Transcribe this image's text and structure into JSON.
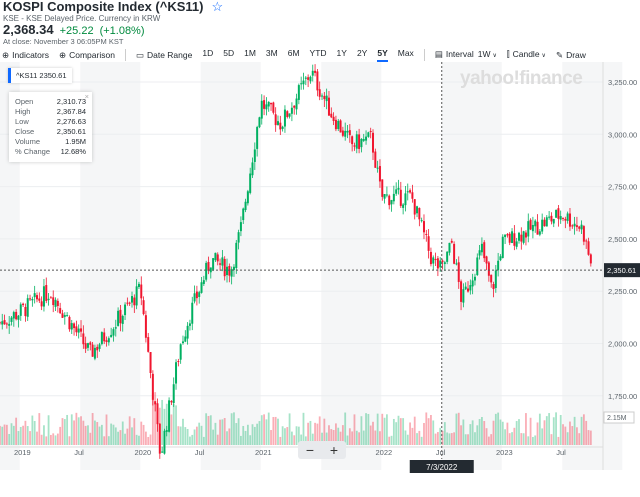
{
  "header": {
    "title": "KOSPI Composite Index (^KS11)",
    "star_icon": "star-icon",
    "subtitle": "KSE - KSE Delayed Price. Currency in KRW",
    "price": "2,368.34",
    "change": "+25.22",
    "change_pct": "(+1.08%)",
    "close_time": "At close: November 3 06:05PM KST"
  },
  "toolbar": {
    "indicators": "Indicators",
    "comparison": "Comparison",
    "date_range": "Date Range",
    "ranges": [
      "1D",
      "5D",
      "1M",
      "3M",
      "6M",
      "YTD",
      "1Y",
      "2Y",
      "5Y",
      "Max"
    ],
    "selected_range": "5Y",
    "interval_label": "Interval",
    "interval": "1W",
    "chart_type": "Candle",
    "draw": "Draw"
  },
  "legend": {
    "tag": "^KS11  2350.61"
  },
  "tooltip": {
    "rows": [
      [
        "Open",
        "2,310.73"
      ],
      [
        "High",
        "2,367.84"
      ],
      [
        "Low",
        "2,276.63"
      ],
      [
        "Close",
        "2,350.61"
      ],
      [
        "Volume",
        "1.95M"
      ],
      [
        "% Change",
        "12.68%"
      ]
    ]
  },
  "watermark": "yahoo!finance",
  "zoom": {
    "minus": "−",
    "plus": "+"
  },
  "colors": {
    "up": "#00b061",
    "down": "#f0162f",
    "accent": "#0f69ff"
  },
  "chart_data": {
    "type": "candlestick",
    "y_ticks": [
      "3,250.00",
      "3,000.00",
      "2,750.00",
      "2,500.00",
      "2,250.00",
      "2,000.00",
      "1,750.00"
    ],
    "y_tick_values": [
      3250,
      3000,
      2750,
      2500,
      2250,
      2000,
      1750
    ],
    "x_ticks": [
      "2019",
      "Jul",
      "2020",
      "Jul",
      "2021",
      "Jul",
      "2022",
      "Jul",
      "2023",
      "Jul"
    ],
    "crosshair_date": "7/3/2022",
    "current_price_label": "2,350.61",
    "volume_label": "2.15M",
    "close_path": [
      [
        "2018-11",
        2100
      ],
      [
        "2019-01",
        2150
      ],
      [
        "2019-04",
        2250
      ],
      [
        "2019-06",
        2100
      ],
      [
        "2019-08",
        1950
      ],
      [
        "2019-11",
        2130
      ],
      [
        "2020-01",
        2260
      ],
      [
        "2020-03",
        1460
      ],
      [
        "2020-05",
        2000
      ],
      [
        "2020-06",
        2150
      ],
      [
        "2020-08",
        2400
      ],
      [
        "2020-10",
        2350
      ],
      [
        "2020-11",
        2550
      ],
      [
        "2021-01",
        3150
      ],
      [
        "2021-03",
        3050
      ],
      [
        "2021-06",
        3300
      ],
      [
        "2021-08",
        3100
      ],
      [
        "2021-10",
        2950
      ],
      [
        "2021-12",
        2980
      ],
      [
        "2022-01",
        2700
      ],
      [
        "2022-04",
        2700
      ],
      [
        "2022-06",
        2400
      ],
      [
        "2022-07",
        2350
      ],
      [
        "2022-08",
        2480
      ],
      [
        "2022-09",
        2200
      ],
      [
        "2022-11",
        2450
      ],
      [
        "2022-12",
        2250
      ],
      [
        "2023-01",
        2480
      ],
      [
        "2023-04",
        2550
      ],
      [
        "2023-07",
        2620
      ],
      [
        "2023-09",
        2550
      ],
      [
        "2023-10",
        2350
      ]
    ]
  }
}
